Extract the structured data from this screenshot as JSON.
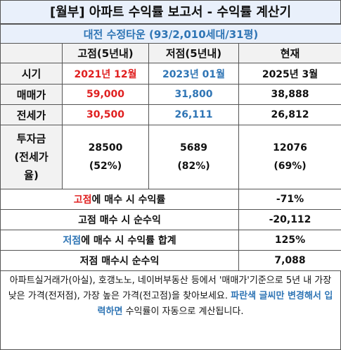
{
  "title": "[월부] 아파트 수익률 보고서 - 수익률 계산기",
  "subtitle": "대전 수정타운 (93/2,010세대/31평)",
  "columns": {
    "col1": "",
    "col2": "고점(5년내)",
    "col3": "저점(5년내)",
    "col4": "현재"
  },
  "rows": {
    "sigi": {
      "label": "시기",
      "high": "2021년 12월",
      "low": "2023년 01월",
      "now": "2025년 3월"
    },
    "maemae": {
      "label": "매매가",
      "high": "59,000",
      "low": "31,800",
      "now": "38,888"
    },
    "jeonse": {
      "label": "전세가",
      "high": "30,500",
      "low": "26,111",
      "now": "26,812"
    },
    "invest": {
      "label_line1": "투자금",
      "label_line2": "(전세가",
      "label_line3": "율)",
      "high_amount": "28500",
      "high_pct": "(52%)",
      "low_amount": "5689",
      "low_pct": "(82%)",
      "now_amount": "12076",
      "now_pct": "(69%)"
    }
  },
  "summary": {
    "r1_hl": "고점",
    "r1_rest": "에 매수 시 수익률",
    "r1_value": "-71%",
    "r2_label": "고점 매수 시 순수익",
    "r2_value": "-20,112",
    "r3_hl": "저점",
    "r3_rest": "에 매수 시 수익률 합계",
    "r3_value": "125%",
    "r4_label": "저점 매수시 순수익",
    "r4_value": "7,088"
  },
  "note": {
    "part1": "아파트실거래가(아실), 호갱노노, 네이버부동산 등에서 '매매가'기준으로 5년 내 가장 낮은 가격(전저점), 가장 높은 가격(전고점)을 찾아보세요. ",
    "highlight": "파란색 글씨만 변경해서 입력하면",
    "part2": " 수익률이 자동으로 계산됩니다."
  },
  "colors": {
    "accent_blue": "#2f75b5",
    "accent_red": "#e02020",
    "header_bg": "#e9f0fb",
    "label_bg": "#f2f2f2"
  }
}
